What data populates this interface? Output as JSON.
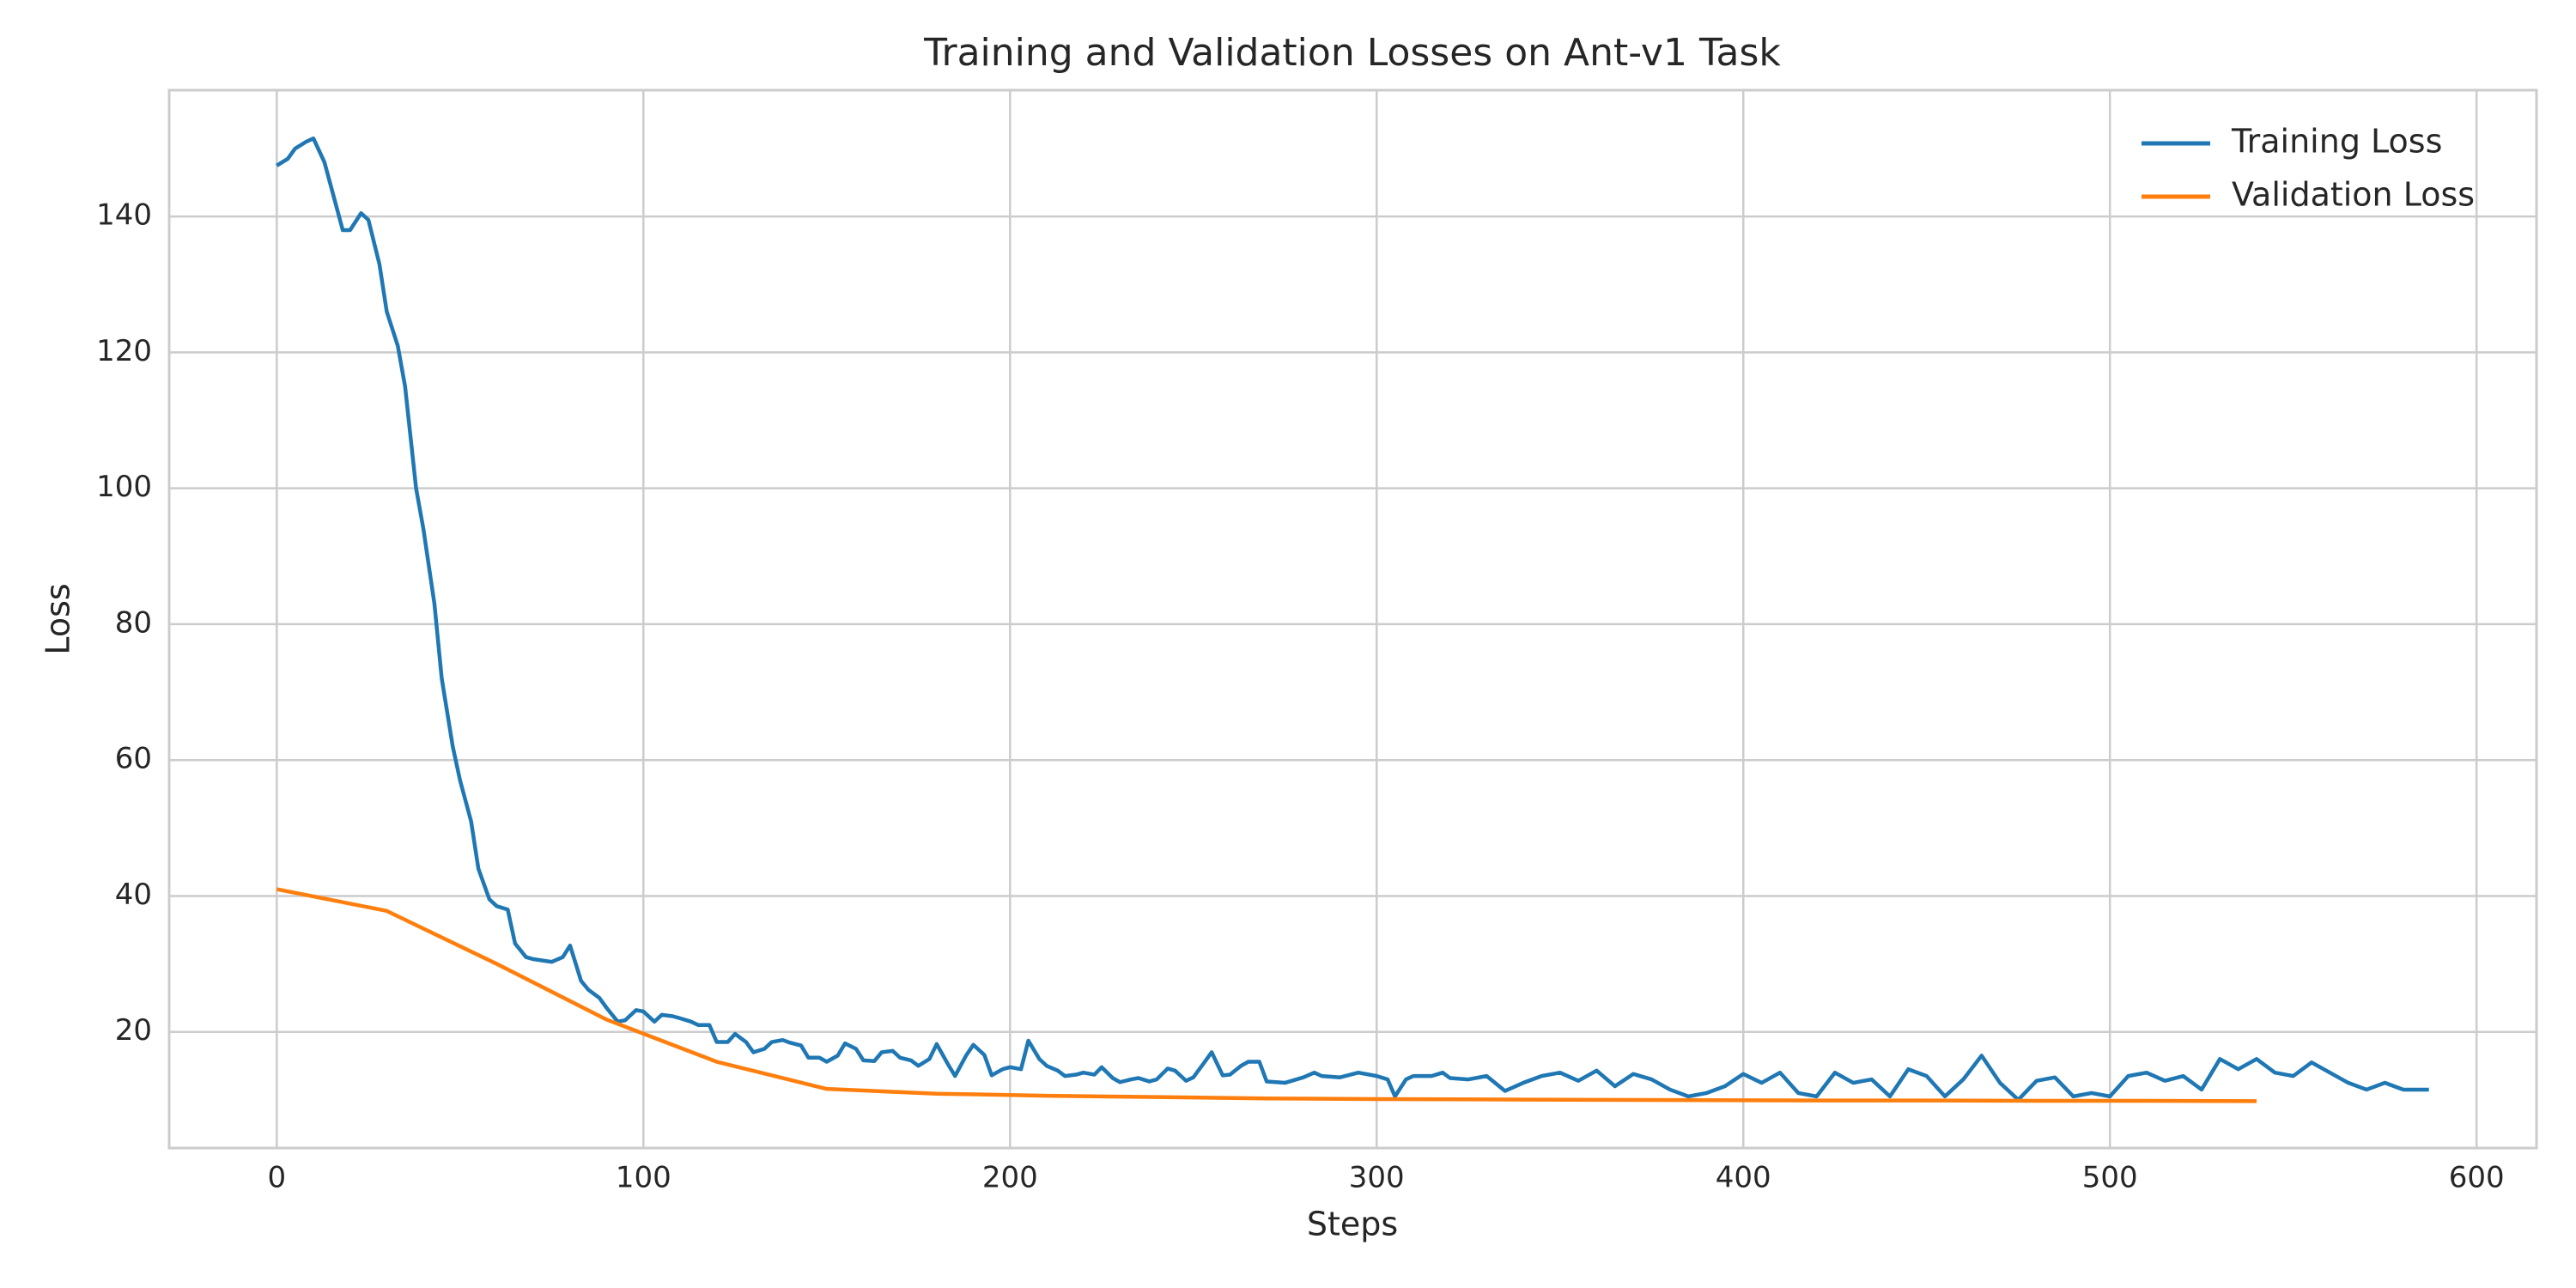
{
  "chart_data": {
    "type": "line",
    "title": "Training and Validation Losses on Ant-v1 Task",
    "xlabel": "Steps",
    "ylabel": "Loss",
    "xlim": [
      -29.35,
      616.35
    ],
    "ylim": [
      2.9,
      158.6
    ],
    "xticks": [
      0,
      100,
      200,
      300,
      400,
      500,
      600
    ],
    "yticks": [
      20,
      40,
      60,
      80,
      100,
      120,
      140
    ],
    "grid": true,
    "legend": "upper right",
    "series": [
      {
        "name": "Training Loss",
        "color": "#1f77b4",
        "x": [
          0,
          3,
          5,
          8,
          10,
          13,
          15,
          18,
          20,
          23,
          25,
          28,
          30,
          33,
          35,
          38,
          40,
          43,
          45,
          48,
          50,
          53,
          55,
          58,
          60,
          63,
          65,
          68,
          70,
          75,
          78,
          80,
          83,
          85,
          88,
          90,
          93,
          95,
          98,
          100,
          103,
          105,
          108,
          110,
          113,
          115,
          118,
          120,
          123,
          125,
          128,
          130,
          133,
          135,
          138,
          140,
          143,
          145,
          148,
          150,
          153,
          155,
          158,
          160,
          163,
          165,
          168,
          170,
          173,
          175,
          178,
          180,
          183,
          185,
          188,
          190,
          193,
          195,
          198,
          200,
          203,
          205,
          208,
          210,
          213,
          215,
          218,
          220,
          223,
          225,
          228,
          230,
          233,
          235,
          238,
          240,
          243,
          245,
          248,
          250,
          253,
          255,
          258,
          260,
          263,
          265,
          268,
          270,
          275,
          280,
          283,
          285,
          290,
          295,
          300,
          303,
          305,
          308,
          310,
          315,
          318,
          320,
          325,
          330,
          335,
          340,
          345,
          350,
          355,
          360,
          365,
          370,
          375,
          380,
          385,
          390,
          395,
          400,
          405,
          410,
          415,
          420,
          425,
          430,
          435,
          440,
          445,
          450,
          455,
          460,
          465,
          470,
          475,
          480,
          485,
          490,
          495,
          500,
          505,
          510,
          515,
          520,
          525,
          530,
          535,
          540,
          545,
          550,
          555,
          560,
          565,
          570,
          575,
          580,
          587
        ],
        "values": [
          147.5,
          148.5,
          150,
          151,
          151.5,
          148,
          144,
          138,
          138,
          140.5,
          139.5,
          133,
          126,
          121,
          115,
          100,
          94,
          83,
          72,
          62,
          57,
          51,
          44,
          39.5,
          38.5,
          38,
          33,
          31,
          30.7,
          30.3,
          31,
          32.7,
          27.5,
          26.2,
          25,
          23.5,
          21.5,
          21.7,
          23.2,
          23,
          21.5,
          22.5,
          22.3,
          22,
          21.5,
          21,
          21,
          18.5,
          18.5,
          19.7,
          18.5,
          17,
          17.5,
          18.5,
          18.8,
          18.4,
          18,
          16.2,
          16.2,
          15.6,
          16.5,
          18.3,
          17.5,
          15.8,
          15.7,
          17,
          17.2,
          16.2,
          15.8,
          15,
          16,
          18.2,
          15.3,
          13.5,
          16.5,
          18.1,
          16.6,
          13.6,
          14.5,
          14.8,
          14.5,
          18.7,
          16,
          15,
          14.3,
          13.5,
          13.7,
          14,
          13.7,
          14.8,
          13.2,
          12.6,
          13,
          13.2,
          12.7,
          13,
          14.6,
          14.3,
          12.8,
          13.3,
          15.5,
          17,
          13.6,
          13.7,
          15,
          15.6,
          15.6,
          12.7,
          12.5,
          13.3,
          14,
          13.5,
          13.3,
          14,
          13.5,
          13,
          10.5,
          13,
          13.5,
          13.5,
          14,
          13.2,
          13,
          13.5,
          11.3,
          12.5,
          13.5,
          14,
          12.8,
          14.3,
          12,
          13.8,
          13,
          11.5,
          10.5,
          11,
          12,
          13.8,
          12.5,
          14,
          11,
          10.5,
          14,
          12.5,
          13,
          10.5,
          14.5,
          13.5,
          10.5,
          13,
          16.5,
          12.5,
          10,
          12.8,
          13.3,
          10.5,
          11,
          10.5,
          13.5,
          14,
          12.8,
          13.5,
          11.5,
          16,
          14.5,
          16,
          14,
          13.5,
          15.5,
          14,
          12.5,
          11.5,
          12.5,
          11.5,
          11.5
        ]
      },
      {
        "name": "Validation Loss",
        "color": "#ff7f0e",
        "x": [
          0,
          30,
          60,
          90,
          120,
          150,
          180,
          210,
          240,
          270,
          300,
          330,
          360,
          390,
          420,
          450,
          480,
          510,
          540
        ],
        "values": [
          41,
          37.8,
          30,
          21.8,
          15.6,
          11.6,
          10.9,
          10.6,
          10.4,
          10.2,
          10.1,
          10.05,
          10,
          9.95,
          9.9,
          9.9,
          9.85,
          9.85,
          9.8
        ]
      }
    ]
  }
}
